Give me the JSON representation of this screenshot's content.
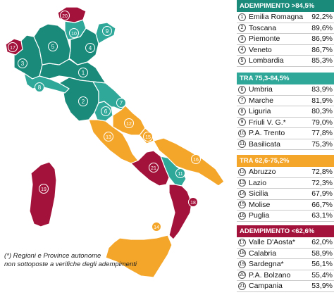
{
  "colors": {
    "green": "#1a8a7a",
    "teal": "#2fa89a",
    "orange": "#f4a62a",
    "red": "#a3123a",
    "sea": "#ffffff"
  },
  "footnote": [
    "(*) Regioni e Province autonome",
    "non sottoposte a verifiche degli adempimenti"
  ],
  "groups": [
    {
      "header": "ADEMPIMENTO >84,5%",
      "color": "#1a8a7a",
      "text_color": "#ffffff",
      "rows": [
        {
          "n": "1",
          "name": "Emilia Romagna",
          "value": "92,2%"
        },
        {
          "n": "2",
          "name": "Toscana",
          "value": "89,6%"
        },
        {
          "n": "3",
          "name": "Piemonte",
          "value": "86,9%"
        },
        {
          "n": "4",
          "name": "Veneto",
          "value": "86,7%"
        },
        {
          "n": "5",
          "name": "Lombardia",
          "value": "85,3%"
        }
      ]
    },
    {
      "header": "TRA 75,3-84,5%",
      "color": "#2fa89a",
      "text_color": "#ffffff",
      "rows": [
        {
          "n": "6",
          "name": "Umbria",
          "value": "83,9%"
        },
        {
          "n": "7",
          "name": "Marche",
          "value": "81,9%"
        },
        {
          "n": "8",
          "name": "Liguria",
          "value": "80,3%"
        },
        {
          "n": "9",
          "name": "Friuli V. G.*",
          "value": "79,0%"
        },
        {
          "n": "10",
          "name": "P.A. Trento",
          "value": "77,8%"
        },
        {
          "n": "11",
          "name": "Basilicata",
          "value": "75,3%"
        }
      ]
    },
    {
      "header": "TRA 62,6-75,2%",
      "color": "#f4a62a",
      "text_color": "#ffffff",
      "rows": [
        {
          "n": "12",
          "name": "Abruzzo",
          "value": "72,8%"
        },
        {
          "n": "13",
          "name": "Lazio",
          "value": "72,3%"
        },
        {
          "n": "14",
          "name": "Sicilia",
          "value": "67,9%"
        },
        {
          "n": "15",
          "name": "Molise",
          "value": "66,7%"
        },
        {
          "n": "16",
          "name": "Puglia",
          "value": "63,1%"
        }
      ]
    },
    {
      "header": "ADEMPIMENTO <62,6%",
      "color": "#a3123a",
      "text_color": "#ffffff",
      "rows": [
        {
          "n": "17",
          "name": "Valle D'Aosta*",
          "value": "62,0%"
        },
        {
          "n": "18",
          "name": "Calabria",
          "value": "58,9%"
        },
        {
          "n": "19",
          "name": "Sardegna*",
          "value": "56,1%"
        },
        {
          "n": "20",
          "name": "P.A. Bolzano",
          "value": "55,4%"
        },
        {
          "n": "21",
          "name": "Campania",
          "value": "53,9%"
        }
      ]
    }
  ],
  "regions": [
    {
      "n": "1",
      "label": "1",
      "tier": "green"
    },
    {
      "n": "2",
      "label": "2",
      "tier": "green"
    },
    {
      "n": "3",
      "label": "3",
      "tier": "green"
    },
    {
      "n": "4",
      "label": "4",
      "tier": "green"
    },
    {
      "n": "5",
      "label": "5",
      "tier": "green"
    },
    {
      "n": "6",
      "label": "6",
      "tier": "teal"
    },
    {
      "n": "7",
      "label": "7",
      "tier": "teal"
    },
    {
      "n": "8",
      "label": "8",
      "tier": "teal"
    },
    {
      "n": "9",
      "label": "9",
      "tier": "teal"
    },
    {
      "n": "10",
      "label": "10",
      "tier": "teal"
    },
    {
      "n": "11",
      "label": "11",
      "tier": "teal"
    },
    {
      "n": "12",
      "label": "12",
      "tier": "orange"
    },
    {
      "n": "13",
      "label": "13",
      "tier": "orange"
    },
    {
      "n": "14",
      "label": "14",
      "tier": "orange"
    },
    {
      "n": "15",
      "label": "15",
      "tier": "orange"
    },
    {
      "n": "16",
      "label": "16",
      "tier": "orange"
    },
    {
      "n": "17",
      "label": "17",
      "tier": "red"
    },
    {
      "n": "18",
      "label": "18",
      "tier": "red"
    },
    {
      "n": "19",
      "label": "19",
      "tier": "red"
    },
    {
      "n": "20",
      "label": "20",
      "tier": "red"
    },
    {
      "n": "21",
      "label": "21",
      "tier": "red"
    }
  ]
}
